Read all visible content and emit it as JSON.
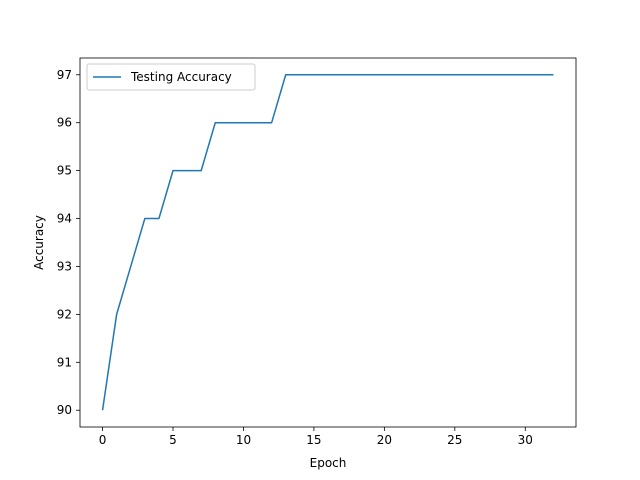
{
  "chart_data": {
    "type": "line",
    "title": "",
    "xlabel": "Epoch",
    "ylabel": "Accuracy",
    "xlim": [
      -1.6,
      33.6
    ],
    "ylim": [
      89.65,
      97.35
    ],
    "xticks": [
      0,
      5,
      10,
      15,
      20,
      25,
      30
    ],
    "yticks": [
      90,
      91,
      92,
      93,
      94,
      95,
      96,
      97
    ],
    "grid": false,
    "legend": "upper-left",
    "series": [
      {
        "name": "Testing Accuracy",
        "color": "#1f77b4",
        "x": [
          0,
          1,
          2,
          3,
          4,
          5,
          6,
          7,
          8,
          9,
          10,
          11,
          12,
          13,
          14,
          15,
          16,
          17,
          18,
          19,
          20,
          21,
          22,
          23,
          24,
          25,
          26,
          27,
          28,
          29,
          30,
          31,
          32
        ],
        "y": [
          90,
          92,
          93,
          94,
          94,
          95,
          95,
          95,
          96,
          96,
          96,
          96,
          96,
          97,
          97,
          97,
          97,
          97,
          97,
          97,
          97,
          97,
          97,
          97,
          97,
          97,
          97,
          97,
          97,
          97,
          97,
          97,
          97
        ]
      }
    ]
  }
}
